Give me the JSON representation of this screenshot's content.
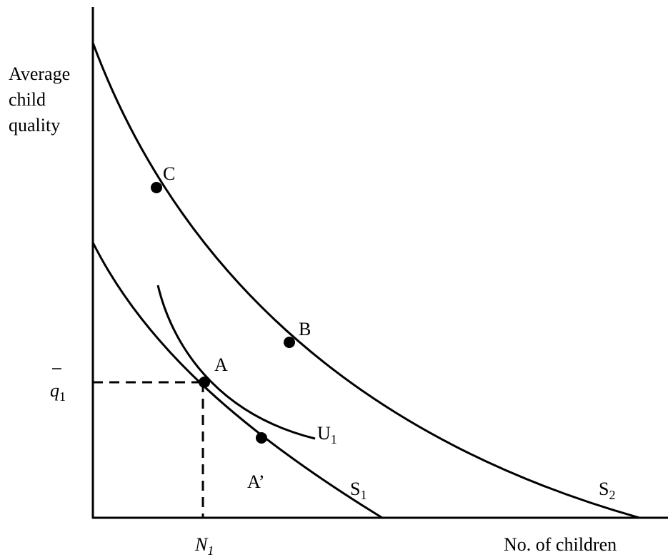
{
  "axes": {
    "y_label": [
      "Average",
      "child",
      "quality"
    ],
    "x_label": "No. of children"
  },
  "points": [
    {
      "label": "C"
    },
    {
      "label": "B"
    },
    {
      "label": "A"
    },
    {
      "label": "A’"
    }
  ],
  "curves": [
    {
      "base": "U",
      "sub": "1"
    },
    {
      "base": "S",
      "sub": "1"
    },
    {
      "base": "S",
      "sub": "2"
    }
  ],
  "markers": {
    "q": {
      "base": "q",
      "sub": "1"
    },
    "n": {
      "base": "N",
      "sub": "1"
    }
  }
}
